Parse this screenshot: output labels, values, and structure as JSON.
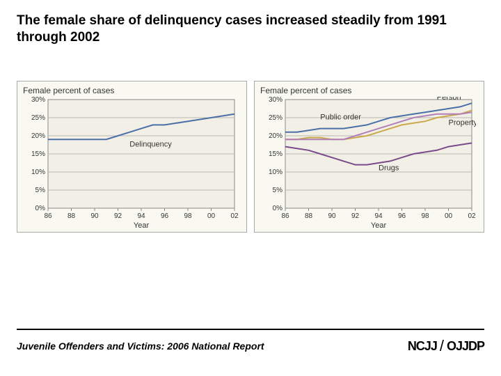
{
  "title": "The female share of delinquency cases increased steadily from 1991 through 2002",
  "source": "Juvenile Offenders and Victims: 2006 National Report",
  "logos": {
    "ncjj": "NCJJ",
    "sep": "/",
    "ojjdp": "OJJDP"
  },
  "chart_left": {
    "subtitle": "Female percent of cases",
    "type": "line",
    "ylim": [
      0,
      30
    ],
    "ytick_step": 5,
    "ytick_suffix": "%",
    "xlim": [
      86,
      102
    ],
    "xticks": [
      86,
      88,
      90,
      92,
      94,
      96,
      98,
      100,
      102
    ],
    "xtick_labels": [
      "86",
      "88",
      "90",
      "92",
      "94",
      "96",
      "98",
      "00",
      "02"
    ],
    "xlabel": "Year",
    "background": "#f2f0e6",
    "grid_color": "#b8b8b0",
    "axis_color": "#888",
    "label_fontsize": 11,
    "tick_fontsize": 10,
    "line_width": 2,
    "series": [
      {
        "name": "Delinquency",
        "color": "#4a6fa8",
        "x": [
          86,
          87,
          88,
          89,
          90,
          91,
          92,
          93,
          94,
          95,
          96,
          97,
          98,
          99,
          100,
          101,
          102
        ],
        "y": [
          19,
          19,
          19,
          19,
          19,
          19,
          20,
          21,
          22,
          23,
          23,
          23.5,
          24,
          24.5,
          25,
          25.5,
          26
        ],
        "label_x": 93,
        "label_y": 17
      }
    ]
  },
  "chart_right": {
    "subtitle": "Female percent of cases",
    "type": "line",
    "ylim": [
      0,
      30
    ],
    "ytick_step": 5,
    "ytick_suffix": "%",
    "xlim": [
      86,
      102
    ],
    "xticks": [
      86,
      88,
      90,
      92,
      94,
      96,
      98,
      100,
      102
    ],
    "xtick_labels": [
      "86",
      "88",
      "90",
      "92",
      "94",
      "96",
      "98",
      "00",
      "02"
    ],
    "xlabel": "Year",
    "background": "#f2f0e6",
    "grid_color": "#b8b8b0",
    "axis_color": "#888",
    "label_fontsize": 11,
    "tick_fontsize": 10,
    "line_width": 2,
    "series": [
      {
        "name": "Person",
        "color": "#4a6fa8",
        "x": [
          86,
          87,
          88,
          89,
          90,
          91,
          92,
          93,
          94,
          95,
          96,
          97,
          98,
          99,
          100,
          101,
          102
        ],
        "y": [
          21,
          21,
          21.5,
          22,
          22,
          22,
          22.5,
          23,
          24,
          25,
          25.5,
          26,
          26.5,
          27,
          27.5,
          28,
          29
        ],
        "label_x": 99,
        "label_y": 30
      },
      {
        "name": "Public order",
        "color": "#c9a94a",
        "x": [
          86,
          87,
          88,
          89,
          90,
          91,
          92,
          93,
          94,
          95,
          96,
          97,
          98,
          99,
          100,
          101,
          102
        ],
        "y": [
          19,
          19,
          19.5,
          19.5,
          19,
          19,
          19.5,
          20,
          21,
          22,
          23,
          23.5,
          24,
          25,
          25.5,
          26,
          27
        ],
        "label_x": 89,
        "label_y": 24.5
      },
      {
        "name": "Property",
        "color": "#b07fb8",
        "x": [
          86,
          87,
          88,
          89,
          90,
          91,
          92,
          93,
          94,
          95,
          96,
          97,
          98,
          99,
          100,
          101,
          102
        ],
        "y": [
          19,
          19,
          19,
          19,
          19,
          19,
          20,
          21,
          22,
          23,
          24,
          25,
          25.5,
          26,
          26,
          26,
          26.5
        ],
        "label_x": 100,
        "label_y": 23
      },
      {
        "name": "Drugs",
        "color": "#7a4a8a",
        "x": [
          86,
          87,
          88,
          89,
          90,
          91,
          92,
          93,
          94,
          95,
          96,
          97,
          98,
          99,
          100,
          101,
          102
        ],
        "y": [
          17,
          16.5,
          16,
          15,
          14,
          13,
          12,
          12,
          12.5,
          13,
          14,
          15,
          15.5,
          16,
          17,
          17.5,
          18
        ],
        "label_x": 94,
        "label_y": 10.5
      }
    ]
  }
}
